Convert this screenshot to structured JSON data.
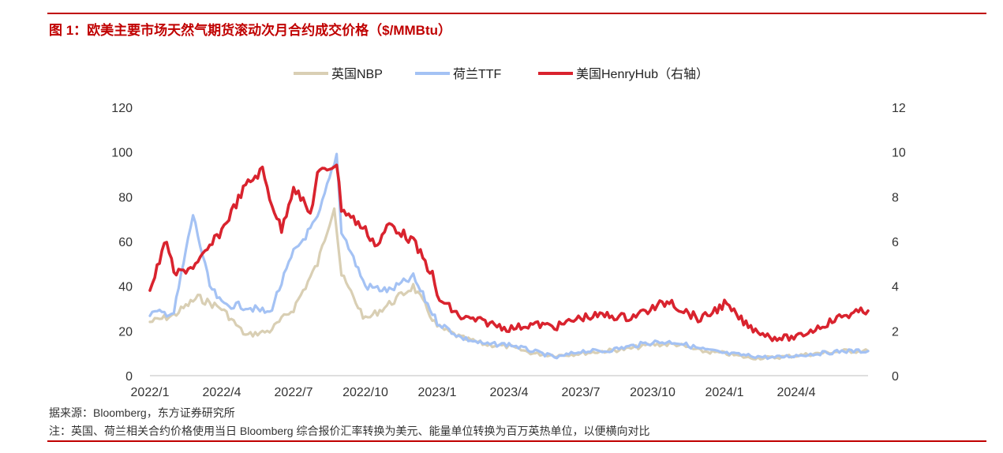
{
  "figure": {
    "title": "图 1：欧美主要市场天然气期货滚动次月合约成交价格（$/MMBtu）",
    "source": "据来源：Bloomberg，东方证券研究所",
    "note": "注：英国、荷兰相关合约价格使用当日 Bloomberg 综合报价汇率转换为美元、能量单位转换为百万英热单位，以便横向对比"
  },
  "chart_data": {
    "type": "line",
    "title": "",
    "x_tick_labels": [
      "2022/1",
      "2022/4",
      "2022/7",
      "2022/10",
      "2023/1",
      "2023/4",
      "2023/7",
      "2023/10",
      "2024/1",
      "2024/4"
    ],
    "x_range": [
      "2022/1",
      "2024/7"
    ],
    "ylim_left": [
      0,
      120
    ],
    "ylim_right": [
      0,
      12
    ],
    "y_ticks_left": [
      "0",
      "20",
      "40",
      "60",
      "80",
      "100",
      "120"
    ],
    "y_ticks_right": [
      "0",
      "2",
      "4",
      "6",
      "8",
      "10",
      "12"
    ],
    "grid": false,
    "legend_position": "top-center",
    "series": [
      {
        "name": "英国NBP",
        "axis": "left",
        "color": "#d9cfb4",
        "points": [
          [
            "2022/1",
            24
          ],
          [
            "2022/2",
            27
          ],
          [
            "2022/3",
            35
          ],
          [
            "2022/4",
            30
          ],
          [
            "2022/5",
            18
          ],
          [
            "2022/6",
            20
          ],
          [
            "2022/7",
            30
          ],
          [
            "2022/8",
            50
          ],
          [
            "2022/8.7",
            76
          ],
          [
            "2022/9",
            45
          ],
          [
            "2022/10",
            25
          ],
          [
            "2022/11",
            32
          ],
          [
            "2022/12",
            40
          ],
          [
            "2023/1",
            22
          ],
          [
            "2023/2",
            17
          ],
          [
            "2023/3",
            14
          ],
          [
            "2023/4",
            13
          ],
          [
            "2023/5",
            10
          ],
          [
            "2023/6",
            9
          ],
          [
            "2023/7",
            10
          ],
          [
            "2023/8",
            11
          ],
          [
            "2023/9",
            12
          ],
          [
            "2023/10",
            14
          ],
          [
            "2023/11",
            14
          ],
          [
            "2023/12",
            11
          ],
          [
            "2024/1",
            10
          ],
          [
            "2024/2",
            8
          ],
          [
            "2024/3",
            8
          ],
          [
            "2024/4",
            9
          ],
          [
            "2024/5",
            10
          ],
          [
            "2024/6",
            11
          ],
          [
            "2024/7",
            11
          ]
        ]
      },
      {
        "name": "荷兰TTF",
        "axis": "left",
        "color": "#a4c2f4",
        "points": [
          [
            "2022/1",
            28
          ],
          [
            "2022/2",
            28
          ],
          [
            "2022/2.8",
            72
          ],
          [
            "2022/3.5",
            40
          ],
          [
            "2022/4",
            32
          ],
          [
            "2022/5",
            31
          ],
          [
            "2022/6",
            28
          ],
          [
            "2022/7",
            55
          ],
          [
            "2022/8",
            70
          ],
          [
            "2022/8.8",
            99
          ],
          [
            "2022/9",
            65
          ],
          [
            "2022/10",
            40
          ],
          [
            "2022/11",
            38
          ],
          [
            "2022/12",
            44
          ],
          [
            "2023/1",
            24
          ],
          [
            "2023/2",
            17
          ],
          [
            "2023/3",
            14
          ],
          [
            "2023/4",
            14
          ],
          [
            "2023/5",
            11
          ],
          [
            "2023/6",
            8
          ],
          [
            "2023/7",
            11
          ],
          [
            "2023/8",
            11
          ],
          [
            "2023/9",
            13
          ],
          [
            "2023/10",
            15
          ],
          [
            "2023/11",
            15
          ],
          [
            "2023/12",
            12
          ],
          [
            "2024/1",
            10
          ],
          [
            "2024/2",
            9
          ],
          [
            "2024/3",
            8
          ],
          [
            "2024/4",
            9
          ],
          [
            "2024/5",
            10
          ],
          [
            "2024/6",
            11
          ],
          [
            "2024/7",
            11
          ]
        ]
      },
      {
        "name": "美国HenryHub（右轴）",
        "axis": "right",
        "color": "#d9232e",
        "points": [
          [
            "2022/1",
            3.8
          ],
          [
            "2022/1.7",
            6.1
          ],
          [
            "2022/2",
            4.5
          ],
          [
            "2022/3",
            5.0
          ],
          [
            "2022/4",
            6.5
          ],
          [
            "2022/5",
            8.5
          ],
          [
            "2022/5.7",
            9.2
          ],
          [
            "2022/6",
            8.0
          ],
          [
            "2022/6.5",
            6.5
          ],
          [
            "2022/7",
            8.5
          ],
          [
            "2022/7.7",
            7.2
          ],
          [
            "2022/8",
            9.0
          ],
          [
            "2022/8.8",
            9.5
          ],
          [
            "2022/9",
            7.5
          ],
          [
            "2022/10",
            6.5
          ],
          [
            "2022/10.5",
            5.8
          ],
          [
            "2022/11",
            6.8
          ],
          [
            "2022/12",
            6.0
          ],
          [
            "2022/12.8",
            4.5
          ],
          [
            "2023/1",
            3.5
          ],
          [
            "2023/2",
            2.6
          ],
          [
            "2023/3",
            2.4
          ],
          [
            "2023/4",
            2.1
          ],
          [
            "2023/5",
            2.3
          ],
          [
            "2023/6",
            2.2
          ],
          [
            "2023/7",
            2.6
          ],
          [
            "2023/8",
            2.7
          ],
          [
            "2023/9",
            2.6
          ],
          [
            "2023/10",
            3.0
          ],
          [
            "2023/10.8",
            3.4
          ],
          [
            "2023/11",
            3.1
          ],
          [
            "2023/12",
            2.5
          ],
          [
            "2024/1",
            3.2
          ],
          [
            "2024/2",
            2.2
          ],
          [
            "2024/3",
            1.7
          ],
          [
            "2024/4",
            1.7
          ],
          [
            "2024/5",
            2.2
          ],
          [
            "2024/6",
            2.7
          ],
          [
            "2024/7",
            2.9
          ]
        ]
      }
    ]
  }
}
